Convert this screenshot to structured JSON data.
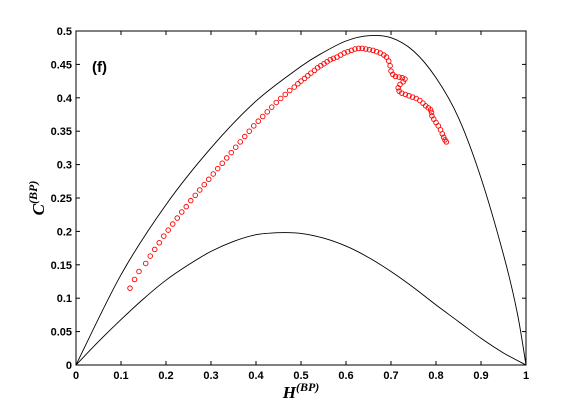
{
  "chart_data": {
    "type": "scatter",
    "panel_label": "(f)",
    "xlabel": {
      "base": "H",
      "sup": "(BP)"
    },
    "ylabel": {
      "base": "C",
      "sup": "(BP)"
    },
    "xlim": [
      0,
      1
    ],
    "ylim": [
      0,
      0.5
    ],
    "xticks": [
      "0",
      "0.1",
      "0.2",
      "0.3",
      "0.4",
      "0.5",
      "0.6",
      "0.7",
      "0.8",
      "0.9",
      "1"
    ],
    "yticks": [
      "0",
      "0.05",
      "0.1",
      "0.15",
      "0.2",
      "0.25",
      "0.3",
      "0.35",
      "0.4",
      "0.45",
      "0.5"
    ],
    "grid": false,
    "colors": {
      "points": "#ff0000",
      "bounds": "#000000"
    },
    "upper_bound": [
      [
        0,
        0
      ],
      [
        0.1,
        0.135
      ],
      [
        0.2,
        0.24
      ],
      [
        0.3,
        0.325
      ],
      [
        0.4,
        0.395
      ],
      [
        0.5,
        0.447
      ],
      [
        0.55,
        0.468
      ],
      [
        0.6,
        0.485
      ],
      [
        0.65,
        0.493
      ],
      [
        0.7,
        0.49
      ],
      [
        0.75,
        0.47
      ],
      [
        0.8,
        0.43
      ],
      [
        0.85,
        0.37
      ],
      [
        0.9,
        0.28
      ],
      [
        0.95,
        0.165
      ],
      [
        0.98,
        0.08
      ],
      [
        1,
        0
      ]
    ],
    "lower_bound": [
      [
        0,
        0
      ],
      [
        0.05,
        0.035
      ],
      [
        0.1,
        0.068
      ],
      [
        0.15,
        0.099
      ],
      [
        0.2,
        0.127
      ],
      [
        0.25,
        0.15
      ],
      [
        0.3,
        0.17
      ],
      [
        0.35,
        0.185
      ],
      [
        0.4,
        0.195
      ],
      [
        0.45,
        0.198
      ],
      [
        0.5,
        0.197
      ],
      [
        0.55,
        0.19
      ],
      [
        0.6,
        0.178
      ],
      [
        0.65,
        0.161
      ],
      [
        0.7,
        0.14
      ],
      [
        0.75,
        0.116
      ],
      [
        0.8,
        0.09
      ],
      [
        0.85,
        0.065
      ],
      [
        0.9,
        0.04
      ],
      [
        0.95,
        0.018
      ],
      [
        1,
        0
      ]
    ],
    "points": [
      [
        0.12,
        0.115
      ],
      [
        0.13,
        0.128
      ],
      [
        0.14,
        0.14
      ],
      [
        0.155,
        0.152
      ],
      [
        0.165,
        0.163
      ],
      [
        0.175,
        0.173
      ],
      [
        0.185,
        0.183
      ],
      [
        0.195,
        0.193
      ],
      [
        0.205,
        0.202
      ],
      [
        0.215,
        0.211
      ],
      [
        0.225,
        0.22
      ],
      [
        0.235,
        0.229
      ],
      [
        0.245,
        0.237
      ],
      [
        0.255,
        0.246
      ],
      [
        0.265,
        0.254
      ],
      [
        0.275,
        0.262
      ],
      [
        0.285,
        0.27
      ],
      [
        0.295,
        0.278
      ],
      [
        0.305,
        0.286
      ],
      [
        0.315,
        0.294
      ],
      [
        0.325,
        0.302
      ],
      [
        0.335,
        0.31
      ],
      [
        0.345,
        0.318
      ],
      [
        0.355,
        0.326
      ],
      [
        0.365,
        0.334
      ],
      [
        0.375,
        0.342
      ],
      [
        0.385,
        0.35
      ],
      [
        0.395,
        0.358
      ],
      [
        0.405,
        0.365
      ],
      [
        0.415,
        0.372
      ],
      [
        0.425,
        0.379
      ],
      [
        0.435,
        0.386
      ],
      [
        0.445,
        0.393
      ],
      [
        0.455,
        0.399
      ],
      [
        0.465,
        0.405
      ],
      [
        0.475,
        0.411
      ],
      [
        0.485,
        0.416
      ],
      [
        0.493,
        0.421
      ],
      [
        0.5,
        0.425
      ],
      [
        0.508,
        0.429
      ],
      [
        0.515,
        0.433
      ],
      [
        0.522,
        0.437
      ],
      [
        0.53,
        0.441
      ],
      [
        0.537,
        0.445
      ],
      [
        0.544,
        0.448
      ],
      [
        0.551,
        0.451
      ],
      [
        0.558,
        0.454
      ],
      [
        0.565,
        0.457
      ],
      [
        0.572,
        0.459
      ],
      [
        0.58,
        0.461
      ],
      [
        0.588,
        0.464
      ],
      [
        0.596,
        0.467
      ],
      [
        0.604,
        0.469
      ],
      [
        0.612,
        0.471
      ],
      [
        0.62,
        0.473
      ],
      [
        0.628,
        0.474
      ],
      [
        0.636,
        0.474
      ],
      [
        0.644,
        0.473
      ],
      [
        0.652,
        0.472
      ],
      [
        0.66,
        0.471
      ],
      [
        0.668,
        0.469
      ],
      [
        0.676,
        0.467
      ],
      [
        0.684,
        0.464
      ],
      [
        0.69,
        0.461
      ],
      [
        0.695,
        0.455
      ],
      [
        0.698,
        0.448
      ],
      [
        0.7,
        0.44
      ],
      [
        0.704,
        0.435
      ],
      [
        0.71,
        0.432
      ],
      [
        0.718,
        0.431
      ],
      [
        0.725,
        0.43
      ],
      [
        0.731,
        0.428
      ],
      [
        0.727,
        0.424
      ],
      [
        0.72,
        0.42
      ],
      [
        0.716,
        0.415
      ],
      [
        0.718,
        0.41
      ],
      [
        0.724,
        0.407
      ],
      [
        0.732,
        0.405
      ],
      [
        0.74,
        0.403
      ],
      [
        0.748,
        0.401
      ],
      [
        0.756,
        0.399
      ],
      [
        0.764,
        0.396
      ],
      [
        0.771,
        0.392
      ],
      [
        0.777,
        0.388
      ],
      [
        0.783,
        0.385
      ],
      [
        0.788,
        0.382
      ],
      [
        0.79,
        0.378
      ],
      [
        0.791,
        0.373
      ],
      [
        0.795,
        0.368
      ],
      [
        0.8,
        0.363
      ],
      [
        0.805,
        0.358
      ],
      [
        0.81,
        0.352
      ],
      [
        0.814,
        0.346
      ],
      [
        0.817,
        0.341
      ],
      [
        0.82,
        0.337
      ],
      [
        0.823,
        0.334
      ]
    ]
  }
}
